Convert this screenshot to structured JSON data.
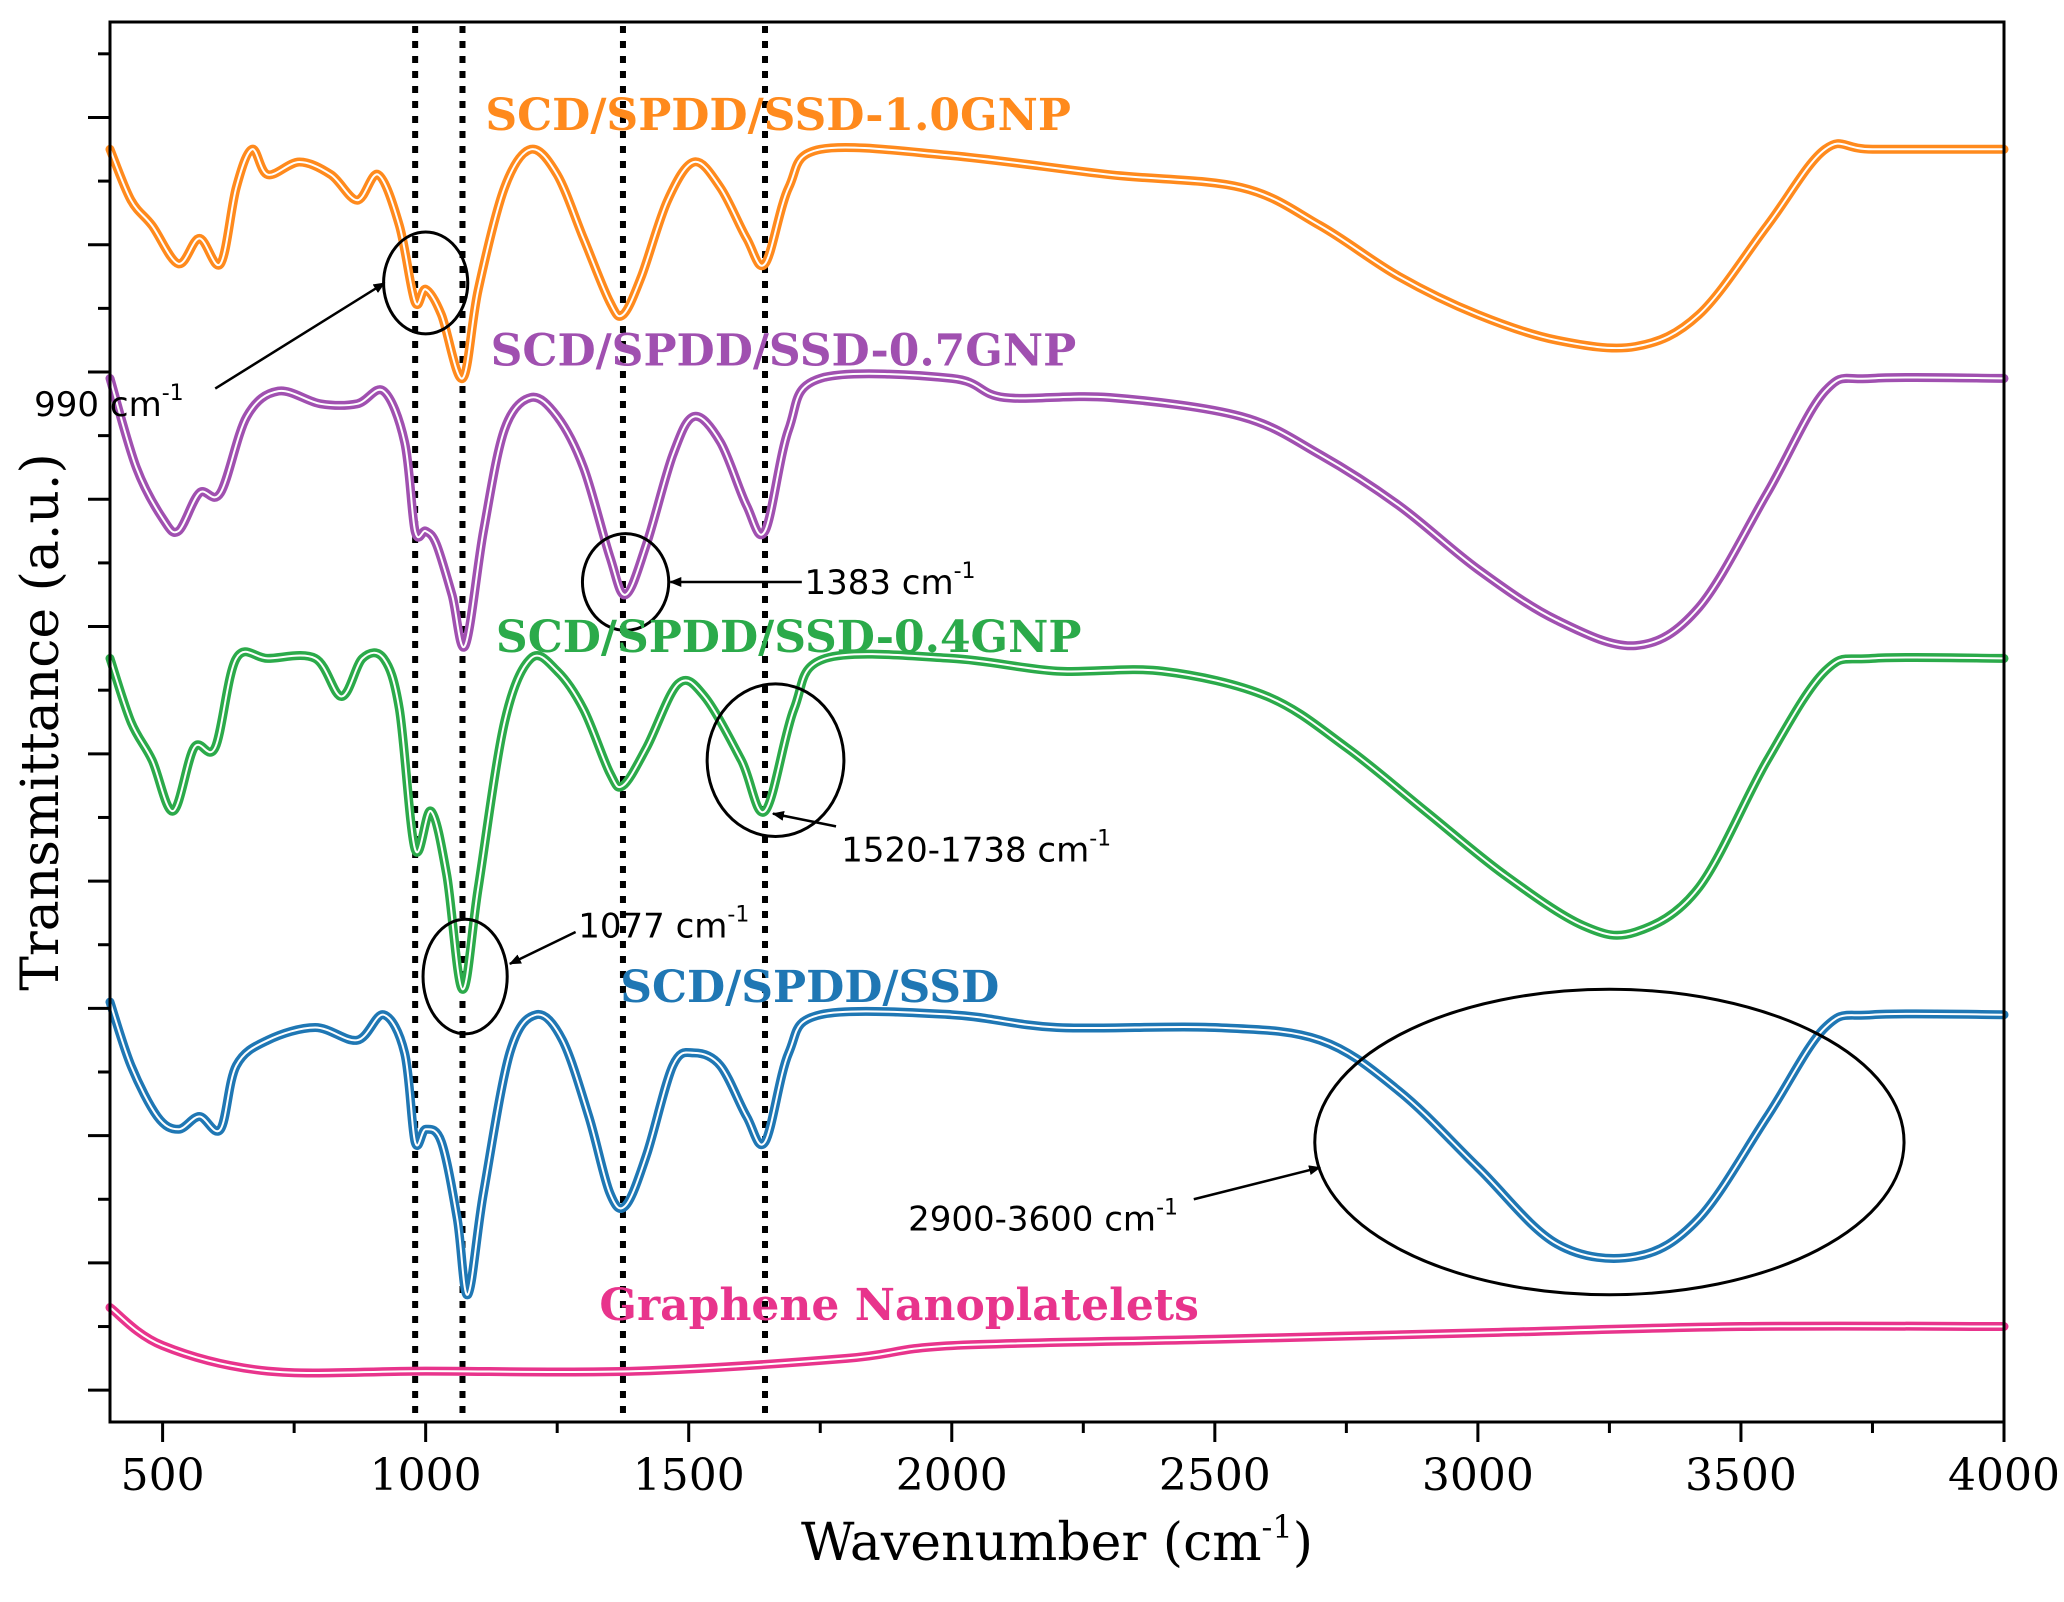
{
  "chart_data": {
    "type": "line",
    "title": "",
    "xlabel": "Wavenumber",
    "xlabel_unit_prefix": "(cm",
    "xlabel_unit_sup": "-1",
    "xlabel_unit_suffix": ")",
    "ylabel": "Transmittance (a.u.)",
    "xlim": [
      400,
      4000
    ],
    "ylim": [
      0,
      11
    ],
    "x_ticks": [
      500,
      1000,
      1500,
      2000,
      2500,
      3000,
      3500,
      4000
    ],
    "grid": false,
    "legend": "inline labels",
    "reference_lines": [
      980,
      1070,
      1375,
      1645
    ],
    "series": [
      {
        "name": "SCD/SPDD/SSD-1.0GNP",
        "color": "#FF8A1D",
        "points": [
          [
            400,
            10.0
          ],
          [
            440,
            9.6
          ],
          [
            480,
            9.4
          ],
          [
            530,
            9.1
          ],
          [
            570,
            9.3
          ],
          [
            610,
            9.1
          ],
          [
            640,
            9.7
          ],
          [
            670,
            10.0
          ],
          [
            700,
            9.8
          ],
          [
            760,
            9.9
          ],
          [
            820,
            9.8
          ],
          [
            870,
            9.6
          ],
          [
            910,
            9.8
          ],
          [
            950,
            9.4
          ],
          [
            980,
            8.8
          ],
          [
            1000,
            8.9
          ],
          [
            1030,
            8.7
          ],
          [
            1070,
            8.2
          ],
          [
            1100,
            8.9
          ],
          [
            1150,
            9.7
          ],
          [
            1200,
            10.0
          ],
          [
            1250,
            9.8
          ],
          [
            1300,
            9.3
          ],
          [
            1350,
            8.8
          ],
          [
            1375,
            8.7
          ],
          [
            1410,
            9.0
          ],
          [
            1460,
            9.6
          ],
          [
            1510,
            9.9
          ],
          [
            1560,
            9.7
          ],
          [
            1610,
            9.3
          ],
          [
            1645,
            9.1
          ],
          [
            1690,
            9.7
          ],
          [
            1750,
            10.0
          ],
          [
            2000,
            9.95
          ],
          [
            2300,
            9.8
          ],
          [
            2550,
            9.7
          ],
          [
            2700,
            9.4
          ],
          [
            2850,
            9.0
          ],
          [
            3000,
            8.7
          ],
          [
            3150,
            8.5
          ],
          [
            3300,
            8.45
          ],
          [
            3420,
            8.7
          ],
          [
            3550,
            9.4
          ],
          [
            3660,
            10.0
          ],
          [
            3750,
            10.0
          ],
          [
            4000,
            10.0
          ]
        ]
      },
      {
        "name": "SCD/SPDD/SSD-0.7GNP",
        "color": "#A050B0",
        "points": [
          [
            400,
            8.2
          ],
          [
            450,
            7.5
          ],
          [
            500,
            7.1
          ],
          [
            530,
            7.0
          ],
          [
            570,
            7.3
          ],
          [
            610,
            7.3
          ],
          [
            660,
            7.9
          ],
          [
            720,
            8.1
          ],
          [
            800,
            8.0
          ],
          [
            870,
            8.0
          ],
          [
            920,
            8.1
          ],
          [
            960,
            7.7
          ],
          [
            980,
            7.0
          ],
          [
            1000,
            7.0
          ],
          [
            1020,
            6.9
          ],
          [
            1050,
            6.5
          ],
          [
            1075,
            6.1
          ],
          [
            1110,
            7.0
          ],
          [
            1150,
            7.8
          ],
          [
            1200,
            8.05
          ],
          [
            1250,
            7.9
          ],
          [
            1300,
            7.5
          ],
          [
            1350,
            6.8
          ],
          [
            1380,
            6.5
          ],
          [
            1420,
            6.9
          ],
          [
            1470,
            7.6
          ],
          [
            1510,
            7.9
          ],
          [
            1560,
            7.7
          ],
          [
            1610,
            7.2
          ],
          [
            1645,
            7.0
          ],
          [
            1690,
            7.8
          ],
          [
            1750,
            8.2
          ],
          [
            2000,
            8.2
          ],
          [
            2100,
            8.05
          ],
          [
            2300,
            8.05
          ],
          [
            2550,
            7.9
          ],
          [
            2700,
            7.6
          ],
          [
            2850,
            7.2
          ],
          [
            3000,
            6.7
          ],
          [
            3150,
            6.3
          ],
          [
            3300,
            6.1
          ],
          [
            3420,
            6.4
          ],
          [
            3550,
            7.3
          ],
          [
            3660,
            8.1
          ],
          [
            3750,
            8.2
          ],
          [
            4000,
            8.2
          ]
        ]
      },
      {
        "name": "SCD/SPDD/SSD-0.4GNP",
        "color": "#2BAA4A",
        "points": [
          [
            400,
            6.0
          ],
          [
            440,
            5.5
          ],
          [
            480,
            5.2
          ],
          [
            520,
            4.8
          ],
          [
            560,
            5.3
          ],
          [
            600,
            5.3
          ],
          [
            640,
            6.0
          ],
          [
            700,
            6.0
          ],
          [
            790,
            6.0
          ],
          [
            840,
            5.7
          ],
          [
            880,
            6.0
          ],
          [
            920,
            6.0
          ],
          [
            950,
            5.6
          ],
          [
            980,
            4.5
          ],
          [
            1010,
            4.8
          ],
          [
            1040,
            4.3
          ],
          [
            1070,
            3.4
          ],
          [
            1100,
            4.2
          ],
          [
            1150,
            5.5
          ],
          [
            1200,
            6.0
          ],
          [
            1250,
            5.9
          ],
          [
            1300,
            5.6
          ],
          [
            1350,
            5.1
          ],
          [
            1375,
            5.0
          ],
          [
            1420,
            5.3
          ],
          [
            1480,
            5.8
          ],
          [
            1530,
            5.7
          ],
          [
            1600,
            5.2
          ],
          [
            1645,
            4.8
          ],
          [
            1700,
            5.6
          ],
          [
            1760,
            6.0
          ],
          [
            2000,
            6.0
          ],
          [
            2200,
            5.9
          ],
          [
            2400,
            5.9
          ],
          [
            2600,
            5.7
          ],
          [
            2750,
            5.3
          ],
          [
            2900,
            4.8
          ],
          [
            3050,
            4.3
          ],
          [
            3200,
            3.9
          ],
          [
            3300,
            3.85
          ],
          [
            3420,
            4.2
          ],
          [
            3550,
            5.2
          ],
          [
            3660,
            5.9
          ],
          [
            3750,
            6.0
          ],
          [
            4000,
            6.0
          ]
        ]
      },
      {
        "name": "SCD/SPDD/SSD",
        "color": "#1F77B4",
        "points": [
          [
            400,
            3.3
          ],
          [
            440,
            2.8
          ],
          [
            490,
            2.4
          ],
          [
            530,
            2.3
          ],
          [
            570,
            2.4
          ],
          [
            610,
            2.3
          ],
          [
            640,
            2.8
          ],
          [
            700,
            3.0
          ],
          [
            790,
            3.1
          ],
          [
            870,
            3.0
          ],
          [
            920,
            3.2
          ],
          [
            960,
            2.9
          ],
          [
            980,
            2.2
          ],
          [
            1000,
            2.3
          ],
          [
            1030,
            2.2
          ],
          [
            1060,
            1.6
          ],
          [
            1080,
            1.0
          ],
          [
            1110,
            1.8
          ],
          [
            1160,
            2.9
          ],
          [
            1210,
            3.2
          ],
          [
            1260,
            3.0
          ],
          [
            1310,
            2.4
          ],
          [
            1350,
            1.8
          ],
          [
            1380,
            1.7
          ],
          [
            1420,
            2.1
          ],
          [
            1470,
            2.8
          ],
          [
            1510,
            2.9
          ],
          [
            1560,
            2.8
          ],
          [
            1610,
            2.4
          ],
          [
            1645,
            2.2
          ],
          [
            1690,
            2.9
          ],
          [
            1750,
            3.2
          ],
          [
            2000,
            3.2
          ],
          [
            2200,
            3.1
          ],
          [
            2500,
            3.1
          ],
          [
            2700,
            3.0
          ],
          [
            2850,
            2.6
          ],
          [
            3000,
            2.0
          ],
          [
            3150,
            1.4
          ],
          [
            3300,
            1.3
          ],
          [
            3420,
            1.6
          ],
          [
            3550,
            2.4
          ],
          [
            3660,
            3.1
          ],
          [
            3750,
            3.2
          ],
          [
            4000,
            3.2
          ]
        ]
      },
      {
        "name": "Graphene Nanoplatelets",
        "color": "#E8348C",
        "points": [
          [
            400,
            0.9
          ],
          [
            500,
            0.6
          ],
          [
            700,
            0.4
          ],
          [
            1000,
            0.4
          ],
          [
            1400,
            0.4
          ],
          [
            1800,
            0.5
          ],
          [
            2000,
            0.6
          ],
          [
            2500,
            0.65
          ],
          [
            3000,
            0.7
          ],
          [
            3500,
            0.75
          ],
          [
            4000,
            0.75
          ]
        ]
      }
    ],
    "series_labels": [
      {
        "text": "SCD/SPDD/SSD-1.0GNP",
        "color": "#FF8A1D",
        "x": 1670,
        "y": 10.15
      },
      {
        "text": "SCD/SPDD/SSD-0.7GNP",
        "color": "#A050B0",
        "x": 1680,
        "y": 8.3
      },
      {
        "text": "SCD/SPDD/SSD-0.4GNP",
        "color": "#2BAA4A",
        "x": 1690,
        "y": 6.05
      },
      {
        "text": "SCD/SPDD/SSD",
        "color": "#1F77B4",
        "x": 1730,
        "y": 3.3
      },
      {
        "text": "Graphene Nanoplatelets",
        "color": "#E8348C",
        "x": 1900,
        "y": 0.8
      }
    ],
    "annotations": [
      {
        "label": "990 cm",
        "sup": "-1",
        "label_x": 540,
        "label_y": 8.0,
        "label_anchor": "end",
        "ellipse": {
          "cx": 1000,
          "cy": 8.95,
          "rx": 80,
          "ry": 0.4
        },
        "arrow_from": [
          600,
          8.12
        ],
        "arrow_to": [
          922,
          8.95
        ]
      },
      {
        "label": "1383 cm",
        "sup": "-1",
        "label_x": 1720,
        "label_y": 6.6,
        "label_anchor": "start",
        "ellipse": {
          "cx": 1380,
          "cy": 6.6,
          "rx": 82,
          "ry": 0.38
        },
        "arrow_from": [
          1715,
          6.6
        ],
        "arrow_to": [
          1465,
          6.6
        ]
      },
      {
        "label": "1520-1738 cm",
        "sup": "-1",
        "label_x": 1790,
        "label_y": 4.5,
        "label_anchor": "start",
        "ellipse": {
          "cx": 1665,
          "cy": 5.2,
          "rx": 130,
          "ry": 0.6
        },
        "arrow_from": [
          1780,
          4.68
        ],
        "arrow_to": [
          1660,
          4.78
        ]
      },
      {
        "label": "1077 cm",
        "sup": "-1",
        "label_x": 1290,
        "label_y": 3.9,
        "label_anchor": "start",
        "ellipse": {
          "cx": 1075,
          "cy": 3.5,
          "rx": 80,
          "ry": 0.45
        },
        "arrow_from": [
          1285,
          3.85
        ],
        "arrow_to": [
          1160,
          3.6
        ]
      },
      {
        "label": "2900-3600 cm",
        "sup": "-1",
        "label_x": 2430,
        "label_y": 1.6,
        "label_anchor": "end",
        "ellipse": {
          "cx": 3250,
          "cy": 2.2,
          "rx": 560,
          "ry": 1.2
        },
        "arrow_from": [
          2460,
          1.75
        ],
        "arrow_to": [
          2700,
          2.0
        ]
      }
    ]
  }
}
